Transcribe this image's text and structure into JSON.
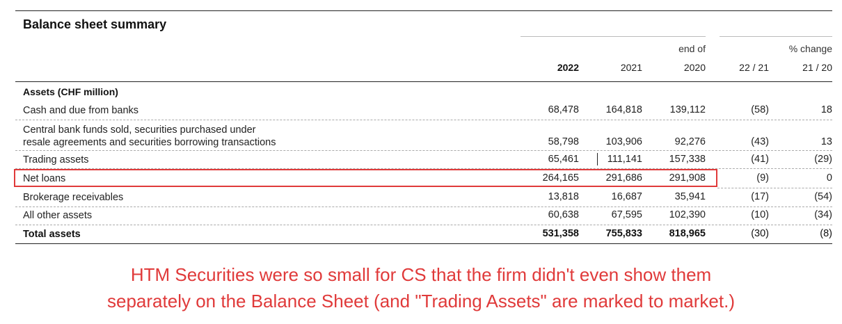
{
  "title": "Balance sheet summary",
  "column_groups": {
    "end_of": "end of",
    "pct_change": "% change"
  },
  "columns": [
    "2022",
    "2021",
    "2020",
    "22 / 21",
    "21 / 20"
  ],
  "section": "Assets (CHF million)",
  "rows": [
    {
      "label": "Cash and due from banks",
      "values": [
        "68,478",
        "164,818",
        "139,112",
        "(58)",
        "18"
      ]
    },
    {
      "label_line1": "Central bank funds sold, securities purchased under",
      "label": "resale agreements and securities borrowing transactions",
      "values": [
        "58,798",
        "103,906",
        "92,276",
        "(43)",
        "13"
      ]
    },
    {
      "label": "Trading assets",
      "values": [
        "65,461",
        "111,141",
        "157,338",
        "(41)",
        "(29)"
      ]
    },
    {
      "label": "Net loans",
      "values": [
        "264,165",
        "291,686",
        "291,908",
        "(9)",
        "0"
      ]
    },
    {
      "label": "Brokerage receivables",
      "values": [
        "13,818",
        "16,687",
        "35,941",
        "(17)",
        "(54)"
      ]
    },
    {
      "label": "All other assets",
      "values": [
        "60,638",
        "67,595",
        "102,390",
        "(10)",
        "(34)"
      ]
    },
    {
      "label": "Total assets",
      "values": [
        "531,358",
        "755,833",
        "818,965",
        "(30)",
        "(8)"
      ]
    }
  ],
  "annotation": {
    "line1": "HTM Securities were so small for CS that the firm didn't even show them",
    "line2": "separately on the Balance Sheet (and \"Trading Assets\" are marked to market.)"
  },
  "colors": {
    "annotation": "#e03a3a",
    "highlight_border": "#e03a3a"
  }
}
